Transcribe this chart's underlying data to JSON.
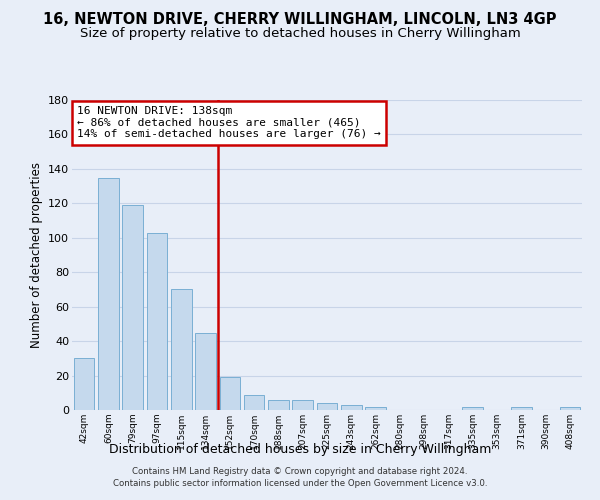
{
  "title_line1": "16, NEWTON DRIVE, CHERRY WILLINGHAM, LINCOLN, LN3 4GP",
  "title_line2": "Size of property relative to detached houses in Cherry Willingham",
  "xlabel": "Distribution of detached houses by size in Cherry Willingham",
  "ylabel": "Number of detached properties",
  "footnote1": "Contains HM Land Registry data © Crown copyright and database right 2024.",
  "footnote2": "Contains public sector information licensed under the Open Government Licence v3.0.",
  "bar_labels": [
    "42sqm",
    "60sqm",
    "79sqm",
    "97sqm",
    "115sqm",
    "134sqm",
    "152sqm",
    "170sqm",
    "188sqm",
    "207sqm",
    "225sqm",
    "243sqm",
    "262sqm",
    "280sqm",
    "298sqm",
    "317sqm",
    "335sqm",
    "353sqm",
    "371sqm",
    "390sqm",
    "408sqm"
  ],
  "bar_values": [
    30,
    135,
    119,
    103,
    70,
    45,
    19,
    9,
    6,
    6,
    4,
    3,
    2,
    0,
    0,
    0,
    2,
    0,
    2,
    0,
    2
  ],
  "bar_color": "#c5d9ed",
  "bar_edge_color": "#7aafd4",
  "vline_index": 5.5,
  "annotation_text": "16 NEWTON DRIVE: 138sqm\n← 86% of detached houses are smaller (465)\n14% of semi-detached houses are larger (76) →",
  "annotation_box_color": "#ffffff",
  "annotation_box_edge": "#cc0000",
  "vline_color": "#cc0000",
  "ylim": [
    0,
    180
  ],
  "yticks": [
    0,
    20,
    40,
    60,
    80,
    100,
    120,
    140,
    160,
    180
  ],
  "background_color": "#e8eef8",
  "grid_color": "#c8d4e8",
  "title1_fontsize": 10.5,
  "title2_fontsize": 9.5,
  "ylabel_fontsize": 8.5,
  "xlabel_fontsize": 9
}
